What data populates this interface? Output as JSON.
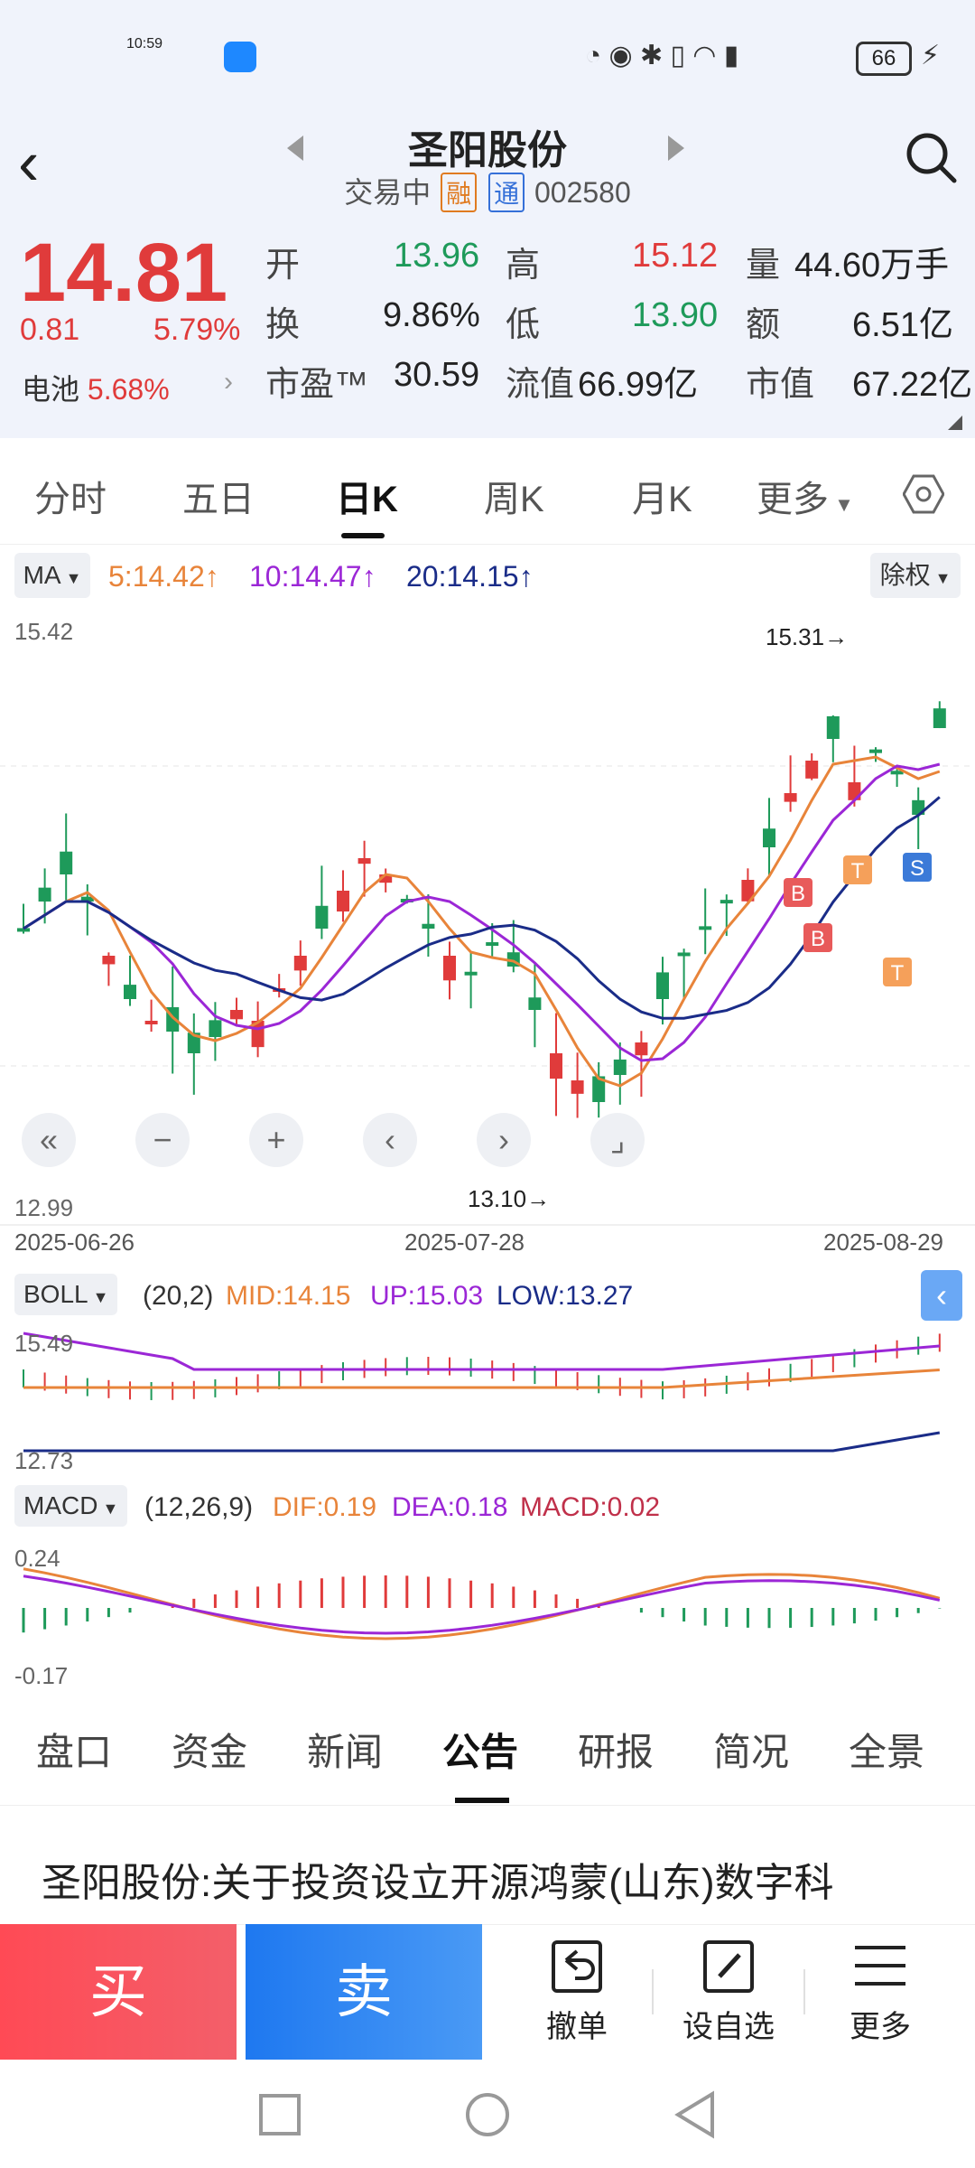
{
  "status": {
    "time": "10:59",
    "battery": "66"
  },
  "header": {
    "title": "圣阳股份",
    "state": "交易中",
    "tag_rong": "融",
    "tag_tong": "通",
    "code": "002580"
  },
  "quote": {
    "price": "14.81",
    "change": "0.81",
    "change_pct": "5.79%",
    "sector_label": "电池",
    "sector_pct": "5.68%",
    "kai_label": "开",
    "kai": "13.96",
    "gao_label": "高",
    "gao": "15.12",
    "liang_label": "量",
    "liang": "44.60万手",
    "huan_label": "换",
    "huan": "9.86%",
    "di_label": "低",
    "di": "13.90",
    "e_label": "额",
    "e": "6.51亿",
    "shiying_label": "市盈™",
    "shiying": "30.59",
    "liuzhi_label": "流值",
    "liuzhi": "66.99亿",
    "shizhi_label": "市值",
    "shizhi": "67.22亿"
  },
  "tabs": [
    "分时",
    "五日",
    "日K",
    "周K",
    "月K",
    "更多"
  ],
  "ma": {
    "button": "MA",
    "ma5": "5:14.42↑",
    "ma10": "10:14.47↑",
    "ma20": "20:14.15↑",
    "adjust": "除权"
  },
  "chart": {
    "y_top": "15.42",
    "y_bottom": "12.99",
    "high_label": "15.31→",
    "low_label": "13.10→",
    "dates": [
      "2025-06-26",
      "2025-07-28",
      "2025-08-29"
    ],
    "markers": [
      "B",
      "B",
      "T",
      "T",
      "S"
    ]
  },
  "boll": {
    "button": "BOLL",
    "params": "(20,2)",
    "mid": "MID:14.15",
    "up": "UP:15.03",
    "low": "LOW:13.27",
    "y_top": "15.49",
    "y_bottom": "12.73"
  },
  "macd": {
    "button": "MACD",
    "params": "(12,26,9)",
    "dif": "DIF:0.19",
    "dea": "DEA:0.18",
    "macd": "MACD:0.02",
    "y_top": "0.24",
    "y_bottom": "-0.17"
  },
  "bottom_tabs": [
    "盘口",
    "资金",
    "新闻",
    "公告",
    "研报",
    "简况",
    "全景"
  ],
  "news_title": "圣阳股份:关于投资设立开源鸿蒙(山东)数字科",
  "actions": {
    "buy": "买",
    "sell": "卖",
    "cancel": "撤单",
    "watch": "设自选",
    "more": "更多"
  },
  "colors": {
    "up": "#e03b3b",
    "down": "#1e9a5a",
    "ma5": "#e8843a",
    "ma10": "#9b27d6",
    "ma20": "#1a2c88"
  }
}
